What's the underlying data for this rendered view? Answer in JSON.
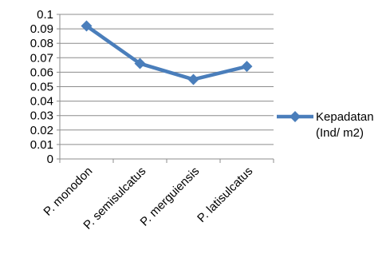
{
  "chart_data": {
    "type": "line",
    "title": "",
    "xlabel": "",
    "ylabel": "",
    "categories": [
      "P. monodon",
      "P. semisulcatus",
      "P. merguiensis",
      "P. latisulcatus"
    ],
    "series": [
      {
        "name": "Kepadatan (Ind/ m2)",
        "legend_lines": [
          "Kepadatan",
          "(Ind/ m2)"
        ],
        "values": [
          0.092,
          0.066,
          0.055,
          0.064
        ],
        "color": "#4a7ebb",
        "marker": "diamond"
      }
    ],
    "ylim": [
      0,
      0.1
    ],
    "yticks": [
      "0",
      "0.01",
      "0.02",
      "0.03",
      "0.04",
      "0.05",
      "0.06",
      "0.07",
      "0.08",
      "0.09",
      "0.1"
    ],
    "grid": "horizontal",
    "legend_position": "right"
  }
}
